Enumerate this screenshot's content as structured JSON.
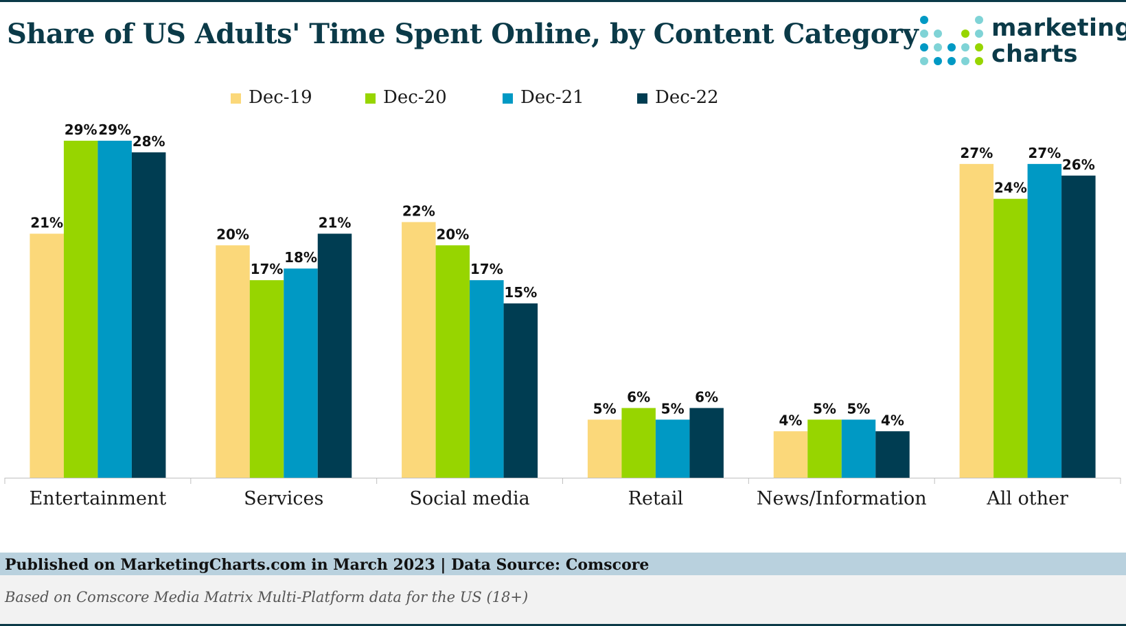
{
  "title": "Share of US Adults' Time Spent Online, by Content Category",
  "logo": {
    "line1": "marketing",
    "line2": "charts"
  },
  "colors": {
    "dec19": "#fbd87a",
    "dec20": "#97d500",
    "dec21": "#0099c4",
    "dec22": "#003d52",
    "title": "#0b3a48",
    "footer_bar": "#b9d1de"
  },
  "chart_data": {
    "type": "bar",
    "categories": [
      "Entertainment",
      "Services",
      "Social media",
      "Retail",
      "News/Information",
      "All other"
    ],
    "series": [
      {
        "name": "Dec-19",
        "values": [
          21,
          20,
          22,
          5,
          4,
          27
        ]
      },
      {
        "name": "Dec-20",
        "values": [
          29,
          17,
          20,
          6,
          5,
          24
        ]
      },
      {
        "name": "Dec-21",
        "values": [
          29,
          18,
          17,
          5,
          5,
          27
        ]
      },
      {
        "name": "Dec-22",
        "values": [
          28,
          21,
          15,
          6,
          4,
          26
        ]
      }
    ],
    "value_suffix": "%",
    "ylim": [
      0,
      29
    ],
    "grid": false,
    "legend": "top-center",
    "title": "Share of US Adults' Time Spent Online, by Content Category"
  },
  "footer": {
    "source": "Published on MarketingCharts.com in March 2023 | Data Source: Comscore",
    "note": "Based on Comscore Media Matrix Multi-Platform data for the US (18+)"
  }
}
